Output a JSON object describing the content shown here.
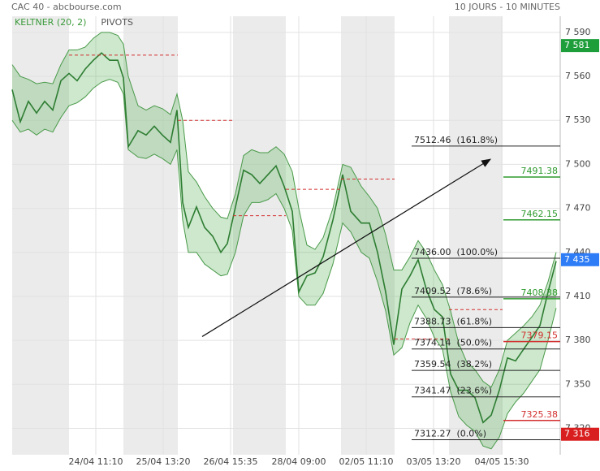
{
  "chart_data": {
    "type": "line",
    "title": "CAC 40 - abcbourse.com",
    "subtitle": "10 JOURS - 10 MINUTES",
    "indicators": [
      {
        "label": "KELTNER (20, 2)",
        "color": "#3a9a3a"
      },
      {
        "label": "PIVOTS",
        "color": "#555555"
      }
    ],
    "xlim": [
      0,
      675
    ],
    "xticks": [
      {
        "value": 103,
        "label": "24/04 11:10"
      },
      {
        "value": 186,
        "label": "25/04 13:20"
      },
      {
        "value": 269,
        "label": "26/04 15:35"
      },
      {
        "value": 353,
        "label": "28/04 09:00"
      },
      {
        "value": 436,
        "label": "02/05 11:10"
      },
      {
        "value": 519,
        "label": "03/05 13:20"
      },
      {
        "value": 603,
        "label": "04/05 15:30"
      }
    ],
    "ylim": [
      7302,
      7601
    ],
    "yticks": [
      {
        "value": 7590,
        "label": "7 590"
      },
      {
        "value": 7560,
        "label": "7 560"
      },
      {
        "value": 7530,
        "label": "7 530"
      },
      {
        "value": 7500,
        "label": "7 500"
      },
      {
        "value": 7470,
        "label": "7 470"
      },
      {
        "value": 7440,
        "label": "7 440"
      },
      {
        "value": 7410,
        "label": "7 410"
      },
      {
        "value": 7380,
        "label": "7 380"
      },
      {
        "value": 7350,
        "label": "7 350"
      },
      {
        "value": 7320,
        "label": "7 320"
      }
    ],
    "grid": true,
    "shaded_ranges": [
      [
        0,
        70
      ],
      [
        137,
        204
      ],
      [
        272,
        337
      ],
      [
        405,
        471
      ],
      [
        538,
        604
      ]
    ],
    "x": [
      0,
      10,
      20,
      30,
      40,
      50,
      60,
      70,
      80,
      90,
      100,
      110,
      120,
      130,
      137,
      143,
      155,
      165,
      175,
      185,
      195,
      203,
      210,
      217,
      227,
      237,
      247,
      257,
      265,
      275,
      285,
      295,
      305,
      315,
      325,
      335,
      345,
      353,
      363,
      373,
      383,
      395,
      407,
      417,
      430,
      440,
      450,
      460,
      470,
      480,
      490,
      500,
      510,
      520,
      530,
      540,
      550,
      560,
      570,
      580,
      590,
      600,
      610,
      620,
      630,
      640,
      650,
      660,
      670
    ],
    "series": [
      {
        "name": "CAC 40",
        "color": "#2e7d32",
        "values": [
          7551,
          7529,
          7543,
          7535,
          7543,
          7537,
          7557,
          7562,
          7557,
          7565,
          7571,
          7576,
          7571,
          7571,
          7559,
          7512,
          7523,
          7520,
          7526,
          7520,
          7515,
          7537,
          7474,
          7457,
          7471,
          7457,
          7451,
          7440,
          7446,
          7471,
          7496,
          7493,
          7487,
          7493,
          7499,
          7485,
          7468,
          7413,
          7424,
          7426,
          7437,
          7462,
          7493,
          7468,
          7460,
          7460,
          7440,
          7413,
          7377,
          7415,
          7424,
          7435,
          7415,
          7401,
          7396,
          7357,
          7346,
          7346,
          7341,
          7324,
          7329,
          7346,
          7368,
          7366,
          7374,
          7382,
          7390,
          7413,
          7434
        ]
      },
      {
        "name": "Keltner haut",
        "color": "#4a9a4a",
        "values": [
          7568,
          7560,
          7558,
          7555,
          7556,
          7555,
          7568,
          7578,
          7578,
          7580,
          7586,
          7590,
          7590,
          7588,
          7582,
          7560,
          7540,
          7537,
          7540,
          7538,
          7534,
          7548,
          7530,
          7495,
          7488,
          7478,
          7470,
          7464,
          7463,
          7480,
          7506,
          7510,
          7508,
          7508,
          7512,
          7507,
          7495,
          7470,
          7445,
          7442,
          7450,
          7470,
          7500,
          7498,
          7485,
          7478,
          7470,
          7452,
          7428,
          7428,
          7437,
          7448,
          7440,
          7428,
          7418,
          7400,
          7378,
          7365,
          7360,
          7352,
          7348,
          7360,
          7380,
          7385,
          7390,
          7396,
          7404,
          7420,
          7440
        ]
      },
      {
        "name": "Keltner bas",
        "color": "#4a9a4a",
        "values": [
          7530,
          7522,
          7524,
          7520,
          7524,
          7522,
          7532,
          7540,
          7542,
          7546,
          7552,
          7556,
          7558,
          7556,
          7548,
          7510,
          7505,
          7504,
          7507,
          7504,
          7500,
          7510,
          7462,
          7440,
          7440,
          7432,
          7428,
          7424,
          7425,
          7440,
          7465,
          7474,
          7474,
          7476,
          7480,
          7470,
          7455,
          7410,
          7404,
          7404,
          7412,
          7432,
          7460,
          7454,
          7440,
          7436,
          7420,
          7400,
          7370,
          7375,
          7392,
          7404,
          7395,
          7382,
          7374,
          7345,
          7328,
          7322,
          7318,
          7308,
          7306,
          7314,
          7330,
          7338,
          7344,
          7352,
          7360,
          7380,
          7402
        ]
      }
    ],
    "pivot_segments": [
      {
        "x": [
          70,
          204
        ],
        "value": 7574.5
      },
      {
        "x": [
          204,
          272
        ],
        "value": 7530
      },
      {
        "x": [
          272,
          337
        ],
        "value": 7465
      },
      {
        "x": [
          337,
          405
        ],
        "value": 7483
      },
      {
        "x": [
          405,
          471
        ],
        "value": 7490
      },
      {
        "x": [
          471,
          538
        ],
        "value": 7381
      },
      {
        "x": [
          538,
          604
        ],
        "value": 7401
      }
    ],
    "pivot_color": "#d32f2f",
    "trend_line": {
      "x": [
        234,
        589
      ],
      "values": [
        7382.6,
        7503.5
      ],
      "color": "#111111"
    },
    "fib_start_x": 492,
    "fib_levels": [
      {
        "value": 7512.46,
        "label": "7512.46  (161.8%)"
      },
      {
        "value": 7436.0,
        "label": "7436.00  (100.0%)"
      },
      {
        "value": 7409.52,
        "label": "7409.52  (78.6%)"
      },
      {
        "value": 7388.73,
        "label": "7388.73  (61.8%)"
      },
      {
        "value": 7374.14,
        "label": "7374.14  (50.0%)"
      },
      {
        "value": 7359.54,
        "label": "7359.54  (38.2%)"
      },
      {
        "value": 7341.47,
        "label": "7341.47  (23.6%)"
      },
      {
        "value": 7312.27,
        "label": "7312.27  (0.0%)"
      }
    ],
    "pivot_levels_x": 605,
    "pivot_levels": [
      {
        "value": 7491.38,
        "label": "7491.38",
        "color": "#2e9a2e"
      },
      {
        "value": 7462.15,
        "label": "7462.15",
        "color": "#2e9a2e"
      },
      {
        "value": 7408.38,
        "label": "7408.38",
        "color": "#2e9a2e"
      },
      {
        "value": 7379.15,
        "label": "7379.15",
        "color": "#d32f2f"
      },
      {
        "value": 7325.38,
        "label": "7325.38",
        "color": "#d32f2f"
      }
    ],
    "badges": [
      {
        "value": 7581,
        "label": "7 581",
        "color": "#1e9e3a"
      },
      {
        "value": 7435,
        "label": "7 435",
        "color": "#2f7df6"
      },
      {
        "value": 7316,
        "label": "7 316",
        "color": "#d81e1e"
      }
    ]
  }
}
